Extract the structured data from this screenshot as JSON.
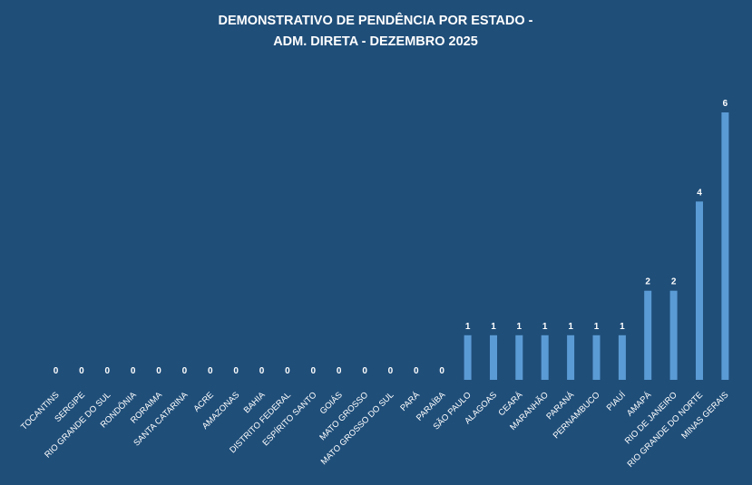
{
  "chart_data": {
    "type": "bar",
    "title": "DEMONSTRATIVO DE PENDÊNCIA POR ESTADO -",
    "subtitle": "ADM. DIRETA - DEZEMBRO 2025",
    "xlabel": "",
    "ylabel": "",
    "ylim": [
      0,
      6
    ],
    "grid": false,
    "colors": {
      "background": "#1f4e79",
      "bar": "#5b9bd5",
      "text": "#ffffff"
    },
    "categories": [
      "TOCANTINS",
      "SERGIPE",
      "RIO GRANDE DO SUL",
      "RONDÔNIA",
      "RORAIMA",
      "SANTA CATARINA",
      "ACRE",
      "AMAZONAS",
      "BAHIA",
      "DISTRITO FEDERAL",
      "ESPÍRITO SANTO",
      "GOIÁS",
      "MATO GROSSO",
      "MATO GROSSO DO SUL",
      "PARÁ",
      "PARAÍBA",
      "SÃO PAULO",
      "ALAGOAS",
      "CEARÁ",
      "MARANHÃO",
      "PARANÁ",
      "PERNAMBUCO",
      "PIAUÍ",
      "AMAPÁ",
      "RIO DE JANEIRO",
      "RIO GRANDE DO NORTE",
      "MINAS GERAIS"
    ],
    "values": [
      0,
      0,
      0,
      0,
      0,
      0,
      0,
      0,
      0,
      0,
      0,
      0,
      0,
      0,
      0,
      0,
      1,
      1,
      1,
      1,
      1,
      1,
      1,
      2,
      2,
      4,
      6
    ]
  }
}
